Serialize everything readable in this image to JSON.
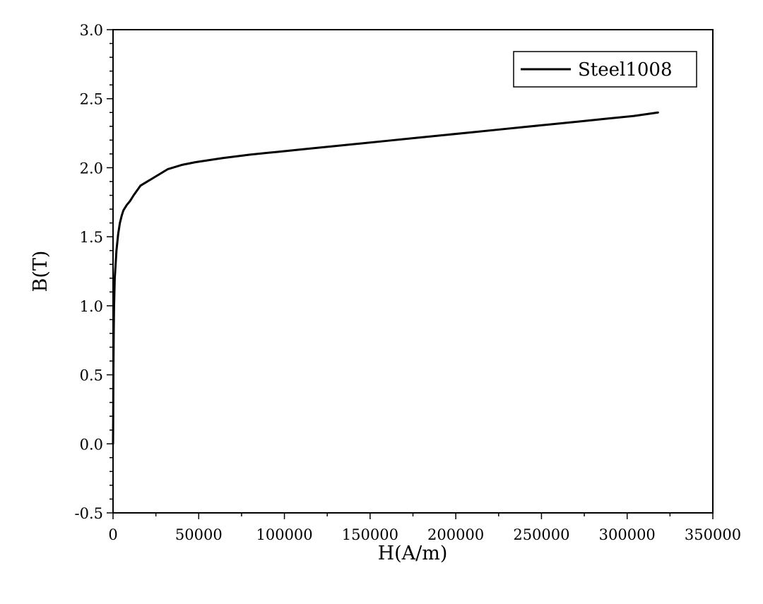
{
  "chart_data": {
    "type": "line",
    "title": "",
    "xlabel": "H(A/m)",
    "ylabel": "B(T)",
    "xlim": [
      0,
      350000
    ],
    "ylim": [
      -0.5,
      3.0
    ],
    "xticks": [
      0,
      50000,
      100000,
      150000,
      200000,
      250000,
      300000,
      350000
    ],
    "yticks": [
      -0.5,
      0.0,
      0.5,
      1.0,
      1.5,
      2.0,
      2.5,
      3.0
    ],
    "xtick_labels": [
      "0",
      "50000",
      "100000",
      "150000",
      "200000",
      "250000",
      "300000",
      "350000"
    ],
    "ytick_labels": [
      "-0.5",
      "0.0",
      "0.5",
      "1.0",
      "1.5",
      "2.0",
      "2.5",
      "3.0"
    ],
    "grid": false,
    "legend_position": "top-right",
    "series": [
      {
        "name": "Steel1008",
        "color": "#000000",
        "x": [
          0,
          100,
          200,
          400,
          600,
          800,
          1000,
          1500,
          2000,
          3000,
          4000,
          5000,
          6000,
          7000,
          8000,
          10000,
          12000,
          16000,
          20000,
          24000,
          28000,
          32000,
          40000,
          48000,
          64000,
          80000,
          96000,
          112000,
          128000,
          144000,
          160000,
          176000,
          192000,
          208000,
          224000,
          240000,
          256000,
          272000,
          288000,
          304000,
          318000
        ],
        "y": [
          0.0,
          0.2,
          0.5,
          0.8,
          1.0,
          1.1,
          1.2,
          1.3,
          1.4,
          1.52,
          1.6,
          1.65,
          1.69,
          1.71,
          1.73,
          1.76,
          1.8,
          1.87,
          1.9,
          1.93,
          1.96,
          1.99,
          2.02,
          2.04,
          2.07,
          2.095,
          2.115,
          2.135,
          2.155,
          2.175,
          2.195,
          2.215,
          2.235,
          2.255,
          2.275,
          2.295,
          2.315,
          2.335,
          2.355,
          2.375,
          2.4
        ]
      }
    ]
  }
}
